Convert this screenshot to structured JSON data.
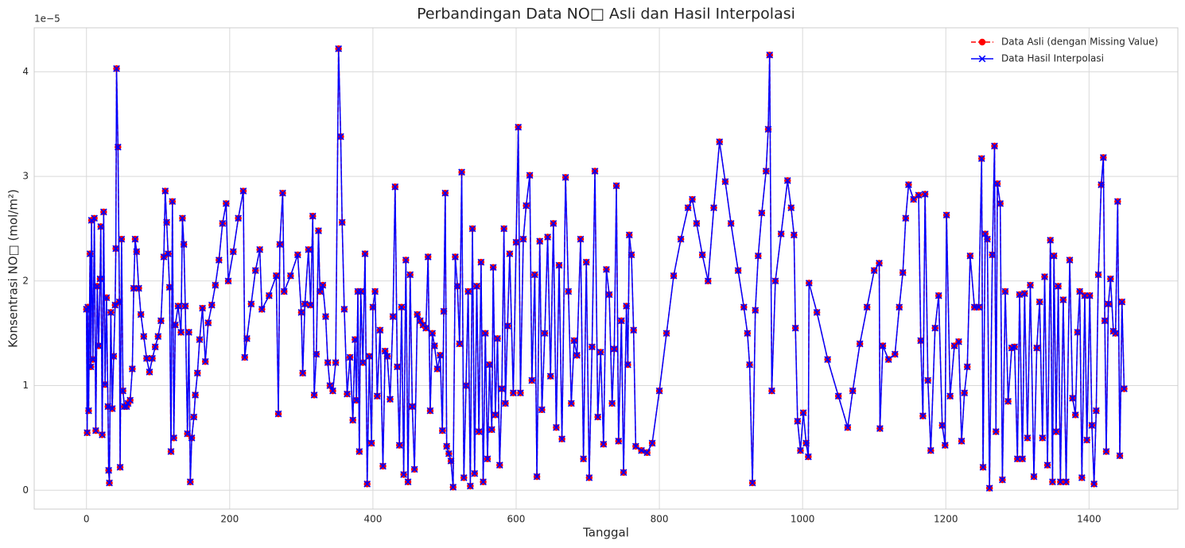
{
  "chart_data": {
    "type": "line",
    "title": "Perbandingan Data NO□ Asli dan Hasil Interpolasi",
    "x_label": "Tanggal",
    "y_label": "Konsentrasi NO□ (mol/m²)",
    "y_offset_label": "1e−5",
    "xlim": [
      -73,
      1524
    ],
    "ylim": [
      -0.18,
      4.42
    ],
    "xticks": [
      0,
      200,
      400,
      600,
      800,
      1000,
      1200,
      1400
    ],
    "yticks": [
      0,
      1,
      2,
      3,
      4
    ],
    "grid": true,
    "legend": "upper right",
    "x": [
      0,
      1,
      2,
      3,
      5,
      6,
      7,
      9,
      11,
      13,
      15,
      17,
      19,
      20,
      22,
      24,
      26,
      28,
      30,
      31,
      32,
      34,
      36,
      38,
      40,
      41,
      42,
      44,
      46,
      47,
      49,
      51,
      53,
      56,
      58,
      61,
      64,
      66,
      68,
      70,
      73,
      76,
      80,
      84,
      88,
      92,
      96,
      100,
      104,
      108,
      110,
      112,
      114,
      116,
      118,
      120,
      122,
      124,
      128,
      132,
      134,
      136,
      138,
      141,
      143,
      145,
      147,
      150,
      152,
      155,
      158,
      162,
      166,
      170,
      175,
      180,
      185,
      190,
      195,
      198,
      205,
      212,
      219,
      221,
      224,
      230,
      236,
      242,
      245,
      255,
      265,
      268,
      270,
      274,
      276,
      285,
      295,
      300,
      302,
      305,
      310,
      313,
      316,
      318,
      321,
      324,
      326,
      330,
      334,
      337,
      340,
      344,
      348,
      352,
      355,
      357,
      360,
      364,
      368,
      372,
      375,
      377,
      379,
      381,
      383,
      386,
      389,
      392,
      395,
      398,
      400,
      403,
      406,
      410,
      414,
      417,
      420,
      424,
      428,
      431,
      434,
      437,
      440,
      443,
      446,
      449,
      452,
      455,
      458,
      462,
      466,
      470,
      474,
      477,
      480,
      483,
      486,
      490,
      494,
      497,
      499,
      501,
      503,
      506,
      509,
      512,
      515,
      518,
      521,
      524,
      527,
      530,
      533,
      536,
      539,
      542,
      545,
      548,
      551,
      554,
      557,
      560,
      563,
      566,
      568,
      571,
      574,
      577,
      580,
      583,
      585,
      588,
      591,
      596,
      600,
      603,
      606,
      610,
      614,
      619,
      622,
      626,
      629,
      633,
      636,
      640,
      644,
      648,
      652,
      656,
      660,
      664,
      669,
      673,
      677,
      681,
      685,
      690,
      694,
      698,
      702,
      706,
      710,
      714,
      718,
      722,
      726,
      730,
      734,
      737,
      740,
      743,
      747,
      750,
      754,
      756,
      758,
      761,
      764,
      767,
      775,
      783,
      790,
      800,
      810,
      820,
      830,
      840,
      846,
      852,
      860,
      868,
      876,
      884,
      892,
      900,
      910,
      918,
      923,
      926,
      930,
      934,
      938,
      943,
      949,
      952,
      954,
      957,
      962,
      970,
      979,
      984,
      988,
      990,
      993,
      997,
      1001,
      1005,
      1008,
      1009,
      1020,
      1035,
      1050,
      1063,
      1070,
      1080,
      1090,
      1100,
      1107,
      1108,
      1112,
      1120,
      1129,
      1135,
      1140,
      1144,
      1148,
      1155,
      1162,
      1165,
      1168,
      1171,
      1175,
      1179,
      1185,
      1190,
      1195,
      1199,
      1201,
      1206,
      1212,
      1218,
      1222,
      1226,
      1230,
      1234,
      1240,
      1246,
      1250,
      1252,
      1255,
      1258,
      1261,
      1265,
      1268,
      1270,
      1272,
      1276,
      1279,
      1283,
      1287,
      1292,
      1296,
      1300,
      1303,
      1307,
      1310,
      1314,
      1318,
      1323,
      1327,
      1331,
      1335,
      1338,
      1342,
      1346,
      1349,
      1351,
      1354,
      1357,
      1360,
      1364,
      1368,
      1373,
      1377,
      1381,
      1384,
      1387,
      1390,
      1394,
      1397,
      1401,
      1404,
      1407,
      1410,
      1413,
      1417,
      1420,
      1422,
      1424,
      1427,
      1430,
      1434,
      1437,
      1440,
      1443,
      1446,
      1449
    ],
    "series": [
      {
        "name": "Data Asli (dengan Missing Value)",
        "color": "#ff0000",
        "linestyle": "dashed",
        "marker": "o",
        "values": [
          1.73,
          0.55,
          1.75,
          0.76,
          2.26,
          1.18,
          2.58,
          1.25,
          2.6,
          0.57,
          1.95,
          1.38,
          2.02,
          2.52,
          0.53,
          2.66,
          1.01,
          1.84,
          0.8,
          0.19,
          0.07,
          1.7,
          0.78,
          1.28,
          1.77,
          2.31,
          4.03,
          3.28,
          1.8,
          0.22,
          2.4,
          0.95,
          0.8,
          0.8,
          0.83,
          0.86,
          1.16,
          1.93,
          2.4,
          2.28,
          1.93,
          1.68,
          1.47,
          1.26,
          1.13,
          1.26,
          1.37,
          1.47,
          1.62,
          2.23,
          2.86,
          2.56,
          2.26,
          1.94,
          0.37,
          2.76,
          0.5,
          1.58,
          1.76,
          1.51,
          2.6,
          2.35,
          1.76,
          0.54,
          1.51,
          0.08,
          0.5,
          0.7,
          0.91,
          1.12,
          1.44,
          1.74,
          1.23,
          1.6,
          1.77,
          1.96,
          2.2,
          2.55,
          2.74,
          2.0,
          2.28,
          2.6,
          2.86,
          1.27,
          1.45,
          1.78,
          2.1,
          2.3,
          1.73,
          1.86,
          2.05,
          0.73,
          2.35,
          2.84,
          1.9,
          2.05,
          2.25,
          1.7,
          1.12,
          1.78,
          2.3,
          1.77,
          2.62,
          0.91,
          1.3,
          2.48,
          1.9,
          1.96,
          1.66,
          1.22,
          1.0,
          0.95,
          1.22,
          4.22,
          3.38,
          2.56,
          1.73,
          0.92,
          1.27,
          0.67,
          1.44,
          0.86,
          1.9,
          0.37,
          1.9,
          1.22,
          2.26,
          0.06,
          1.28,
          0.45,
          1.75,
          1.9,
          0.9,
          1.53,
          0.23,
          1.33,
          1.28,
          0.87,
          1.66,
          2.9,
          1.18,
          0.43,
          1.75,
          0.15,
          2.2,
          0.08,
          2.06,
          0.8,
          0.2,
          1.68,
          1.62,
          1.58,
          1.55,
          2.23,
          0.76,
          1.5,
          1.38,
          1.16,
          1.29,
          0.57,
          1.71,
          2.84,
          0.42,
          0.35,
          0.28,
          0.03,
          2.23,
          1.95,
          1.4,
          3.04,
          0.12,
          1.0,
          1.9,
          0.04,
          2.5,
          0.16,
          1.95,
          0.56,
          2.18,
          0.08,
          1.5,
          0.3,
          1.2,
          0.58,
          2.13,
          0.72,
          1.45,
          0.24,
          0.97,
          2.5,
          0.83,
          1.57,
          2.26,
          0.93,
          2.37,
          3.47,
          0.93,
          2.4,
          2.72,
          3.01,
          1.05,
          2.06,
          0.13,
          2.38,
          0.77,
          1.5,
          2.42,
          1.09,
          2.55,
          0.6,
          2.15,
          0.49,
          2.99,
          1.9,
          0.83,
          1.43,
          1.29,
          2.4,
          0.3,
          2.18,
          0.12,
          1.37,
          3.05,
          0.7,
          1.32,
          0.44,
          2.11,
          1.87,
          0.83,
          1.35,
          2.91,
          0.47,
          1.62,
          0.17,
          1.76,
          1.2,
          2.44,
          2.25,
          1.53,
          0.42,
          0.38,
          0.36,
          0.45,
          0.95,
          1.5,
          2.05,
          2.4,
          2.7,
          2.78,
          2.55,
          2.25,
          2.0,
          2.7,
          3.33,
          2.95,
          2.55,
          2.1,
          1.75,
          1.5,
          1.2,
          0.07,
          1.72,
          2.24,
          2.65,
          3.05,
          3.45,
          4.16,
          0.95,
          2.0,
          2.45,
          2.96,
          2.7,
          2.44,
          1.55,
          0.66,
          0.38,
          0.74,
          0.45,
          0.32,
          1.98,
          1.7,
          1.25,
          0.9,
          0.6,
          0.95,
          1.4,
          1.75,
          2.1,
          2.17,
          0.59,
          1.38,
          1.25,
          1.3,
          1.75,
          2.08,
          2.6,
          2.92,
          2.78,
          2.82,
          1.43,
          0.71,
          2.83,
          1.05,
          0.38,
          1.55,
          1.86,
          0.62,
          0.43,
          2.63,
          0.9,
          1.38,
          1.42,
          0.47,
          0.93,
          1.18,
          2.24,
          1.75,
          1.75,
          3.17,
          0.22,
          2.45,
          2.4,
          0.02,
          2.25,
          3.29,
          0.56,
          2.93,
          2.74,
          0.1,
          1.9,
          0.85,
          1.36,
          1.37,
          0.3,
          1.87,
          0.3,
          1.88,
          0.5,
          1.96,
          0.13,
          1.36,
          1.8,
          0.5,
          2.04,
          0.24,
          2.39,
          0.08,
          2.24,
          0.56,
          1.95,
          0.08,
          1.82,
          0.08,
          2.2,
          0.88,
          0.72,
          1.51,
          1.9,
          0.12,
          1.86,
          0.48,
          1.86,
          0.62,
          0.06,
          0.76,
          2.06,
          2.92,
          3.18,
          1.62,
          0.37,
          1.78,
          2.02,
          1.52,
          1.5,
          2.76,
          0.33,
          1.8,
          0.97
        ]
      },
      {
        "name": "Data Hasil Interpolasi",
        "color": "#0000ff",
        "linestyle": "solid",
        "marker": "x",
        "values": [
          1.73,
          0.55,
          1.75,
          0.76,
          2.26,
          1.18,
          2.58,
          1.25,
          2.6,
          0.57,
          1.95,
          1.38,
          2.02,
          2.52,
          0.53,
          2.66,
          1.01,
          1.84,
          0.8,
          0.19,
          0.07,
          1.7,
          0.78,
          1.28,
          1.77,
          2.31,
          4.03,
          3.28,
          1.8,
          0.22,
          2.4,
          0.95,
          0.8,
          0.8,
          0.83,
          0.86,
          1.16,
          1.93,
          2.4,
          2.28,
          1.93,
          1.68,
          1.47,
          1.26,
          1.13,
          1.26,
          1.37,
          1.47,
          1.62,
          2.23,
          2.86,
          2.56,
          2.26,
          1.94,
          0.37,
          2.76,
          0.5,
          1.58,
          1.76,
          1.51,
          2.6,
          2.35,
          1.76,
          0.54,
          1.51,
          0.08,
          0.5,
          0.7,
          0.91,
          1.12,
          1.44,
          1.74,
          1.23,
          1.6,
          1.77,
          1.96,
          2.2,
          2.55,
          2.74,
          2.0,
          2.28,
          2.6,
          2.86,
          1.27,
          1.45,
          1.78,
          2.1,
          2.3,
          1.73,
          1.86,
          2.05,
          0.73,
          2.35,
          2.84,
          1.9,
          2.05,
          2.25,
          1.7,
          1.12,
          1.78,
          2.3,
          1.77,
          2.62,
          0.91,
          1.3,
          2.48,
          1.9,
          1.96,
          1.66,
          1.22,
          1.0,
          0.95,
          1.22,
          4.22,
          3.38,
          2.56,
          1.73,
          0.92,
          1.27,
          0.67,
          1.44,
          0.86,
          1.9,
          0.37,
          1.9,
          1.22,
          2.26,
          0.06,
          1.28,
          0.45,
          1.75,
          1.9,
          0.9,
          1.53,
          0.23,
          1.33,
          1.28,
          0.87,
          1.66,
          2.9,
          1.18,
          0.43,
          1.75,
          0.15,
          2.2,
          0.08,
          2.06,
          0.8,
          0.2,
          1.68,
          1.62,
          1.58,
          1.55,
          2.23,
          0.76,
          1.5,
          1.38,
          1.16,
          1.29,
          0.57,
          1.71,
          2.84,
          0.42,
          0.35,
          0.28,
          0.03,
          2.23,
          1.95,
          1.4,
          3.04,
          0.12,
          1.0,
          1.9,
          0.04,
          2.5,
          0.16,
          1.95,
          0.56,
          2.18,
          0.08,
          1.5,
          0.3,
          1.2,
          0.58,
          2.13,
          0.72,
          1.45,
          0.24,
          0.97,
          2.5,
          0.83,
          1.57,
          2.26,
          0.93,
          2.37,
          3.47,
          0.93,
          2.4,
          2.72,
          3.01,
          1.05,
          2.06,
          0.13,
          2.38,
          0.77,
          1.5,
          2.42,
          1.09,
          2.55,
          0.6,
          2.15,
          0.49,
          2.99,
          1.9,
          0.83,
          1.43,
          1.29,
          2.4,
          0.3,
          2.18,
          0.12,
          1.37,
          3.05,
          0.7,
          1.32,
          0.44,
          2.11,
          1.87,
          0.83,
          1.35,
          2.91,
          0.47,
          1.62,
          0.17,
          1.76,
          1.2,
          2.44,
          2.25,
          1.53,
          0.42,
          0.38,
          0.36,
          0.45,
          0.95,
          1.5,
          2.05,
          2.4,
          2.7,
          2.78,
          2.55,
          2.25,
          2.0,
          2.7,
          3.33,
          2.95,
          2.55,
          2.1,
          1.75,
          1.5,
          1.2,
          0.07,
          1.72,
          2.24,
          2.65,
          3.05,
          3.45,
          4.16,
          0.95,
          2.0,
          2.45,
          2.96,
          2.7,
          2.44,
          1.55,
          0.66,
          0.38,
          0.74,
          0.45,
          0.32,
          1.98,
          1.7,
          1.25,
          0.9,
          0.6,
          0.95,
          1.4,
          1.75,
          2.1,
          2.17,
          0.59,
          1.38,
          1.25,
          1.3,
          1.75,
          2.08,
          2.6,
          2.92,
          2.78,
          2.82,
          1.43,
          0.71,
          2.83,
          1.05,
          0.38,
          1.55,
          1.86,
          0.62,
          0.43,
          2.63,
          0.9,
          1.38,
          1.42,
          0.47,
          0.93,
          1.18,
          2.24,
          1.75,
          1.75,
          3.17,
          0.22,
          2.45,
          2.4,
          0.02,
          2.25,
          3.29,
          0.56,
          2.93,
          2.74,
          0.1,
          1.9,
          0.85,
          1.36,
          1.37,
          0.3,
          1.87,
          0.3,
          1.88,
          0.5,
          1.96,
          0.13,
          1.36,
          1.8,
          0.5,
          2.04,
          0.24,
          2.39,
          0.08,
          2.24,
          0.56,
          1.95,
          0.08,
          1.82,
          0.08,
          2.2,
          0.88,
          0.72,
          1.51,
          1.9,
          0.12,
          1.86,
          0.48,
          1.86,
          0.62,
          0.06,
          0.76,
          2.06,
          2.92,
          3.18,
          1.62,
          0.37,
          1.78,
          2.02,
          1.52,
          1.5,
          2.76,
          0.33,
          1.8,
          0.97
        ]
      }
    ]
  }
}
